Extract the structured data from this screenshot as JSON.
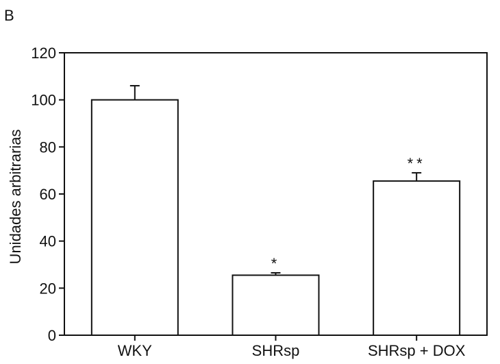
{
  "panel_label": "B",
  "chart_data": {
    "type": "bar",
    "title": "",
    "xlabel": "",
    "ylabel": "Unidades arbitrarias",
    "ylim": [
      0,
      120
    ],
    "yticks": [
      0,
      20,
      40,
      60,
      80,
      100,
      120
    ],
    "categories": [
      "WKY",
      "SHRsp",
      "SHRsp + DOX"
    ],
    "values": [
      100,
      25.5,
      65.5
    ],
    "errors": [
      6,
      1,
      3.5
    ],
    "annotations": [
      "",
      "*",
      "**"
    ],
    "grid": false,
    "legend": "none",
    "colors": {
      "bar_fill": "#ffffff",
      "bar_stroke": "#111111",
      "axis": "#111111"
    }
  }
}
